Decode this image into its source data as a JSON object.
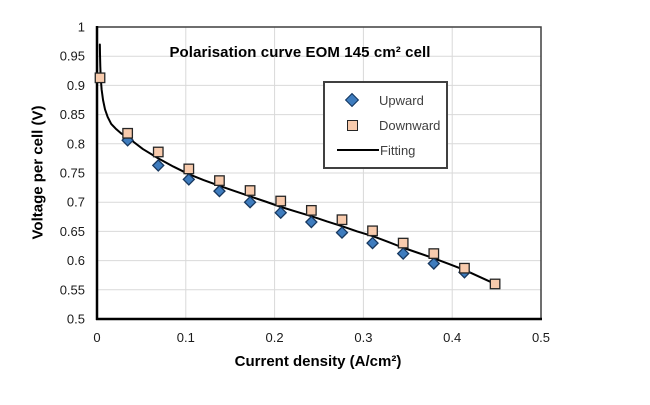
{
  "chart_data": {
    "type": "scatter",
    "title": "Polarisation curve EOM 145 cm² cell",
    "xlabel": "Current density (A/cm²)",
    "ylabel": "Voltage per cell (V)",
    "xlim": [
      0,
      0.5
    ],
    "ylim": [
      0.5,
      1.0
    ],
    "grid": true,
    "legend_position": "upper-right-inside",
    "x_ticks": {
      "values": [
        0,
        0.1,
        0.2,
        0.3,
        0.4,
        0.5
      ],
      "labels": [
        "0",
        "0.1",
        "0.2",
        "0.3",
        "0.4",
        "0.5"
      ]
    },
    "y_ticks": {
      "values": [
        0.5,
        0.55,
        0.6,
        0.65,
        0.7,
        0.75,
        0.8,
        0.85,
        0.9,
        0.95,
        1.0
      ],
      "labels": [
        "0.5",
        "0.55",
        "0.6",
        "0.65",
        "0.7",
        "0.75",
        "0.8",
        "0.85",
        "0.9",
        "0.95",
        "1"
      ]
    },
    "series": [
      {
        "name": "Upward",
        "marker": "diamond",
        "color": "#3E7CBE",
        "edge_color": "#17375E",
        "points": [
          [
            0.0345,
            0.806
          ],
          [
            0.069,
            0.763
          ],
          [
            0.1034,
            0.739
          ],
          [
            0.1379,
            0.719
          ],
          [
            0.1724,
            0.7
          ],
          [
            0.2069,
            0.682
          ],
          [
            0.2414,
            0.666
          ],
          [
            0.2759,
            0.648
          ],
          [
            0.3103,
            0.63
          ],
          [
            0.3448,
            0.612
          ],
          [
            0.3793,
            0.595
          ],
          [
            0.4138,
            0.58
          ]
        ]
      },
      {
        "name": "Downward",
        "marker": "square",
        "color": "#F8CBAD",
        "edge_color": "#262626",
        "points": [
          [
            0.0034,
            0.913
          ],
          [
            0.0345,
            0.818
          ],
          [
            0.069,
            0.786
          ],
          [
            0.1034,
            0.757
          ],
          [
            0.1379,
            0.737
          ],
          [
            0.1724,
            0.72
          ],
          [
            0.2069,
            0.702
          ],
          [
            0.2414,
            0.686
          ],
          [
            0.2759,
            0.67
          ],
          [
            0.3103,
            0.651
          ],
          [
            0.3448,
            0.63
          ],
          [
            0.3793,
            0.612
          ],
          [
            0.4138,
            0.587
          ],
          [
            0.4483,
            0.56
          ]
        ]
      },
      {
        "name": "Fitting",
        "marker": "line",
        "color": "#000000",
        "points": [
          [
            0.0032,
            0.97
          ],
          [
            0.0034,
            0.952
          ],
          [
            0.0037,
            0.933
          ],
          [
            0.0042,
            0.913
          ],
          [
            0.0052,
            0.893
          ],
          [
            0.0068,
            0.875
          ],
          [
            0.009,
            0.859
          ],
          [
            0.012,
            0.846
          ],
          [
            0.016,
            0.834
          ],
          [
            0.021,
            0.826
          ],
          [
            0.027,
            0.818
          ],
          [
            0.0345,
            0.811
          ],
          [
            0.0517,
            0.791
          ],
          [
            0.069,
            0.775
          ],
          [
            0.086,
            0.761
          ],
          [
            0.1034,
            0.748
          ],
          [
            0.12,
            0.738
          ],
          [
            0.1379,
            0.728
          ],
          [
            0.155,
            0.719
          ],
          [
            0.1724,
            0.71
          ],
          [
            0.19,
            0.701
          ],
          [
            0.2069,
            0.692
          ],
          [
            0.224,
            0.684
          ],
          [
            0.2414,
            0.676
          ],
          [
            0.259,
            0.667
          ],
          [
            0.2759,
            0.659
          ],
          [
            0.293,
            0.65
          ],
          [
            0.3103,
            0.642
          ],
          [
            0.328,
            0.632
          ],
          [
            0.3448,
            0.622
          ],
          [
            0.362,
            0.613
          ],
          [
            0.3793,
            0.604
          ],
          [
            0.3966,
            0.594
          ],
          [
            0.4138,
            0.584
          ],
          [
            0.431,
            0.572
          ],
          [
            0.4483,
            0.56
          ]
        ]
      }
    ],
    "style": {
      "background": "#ffffff",
      "grid_color": "#D9D9D9",
      "plot_border_color": "#3F3F3F",
      "axis_color": "#000000",
      "tick_label_color": "#1A1A1A",
      "legend_text_color": "#404040",
      "fitting_line_width": 2
    }
  }
}
